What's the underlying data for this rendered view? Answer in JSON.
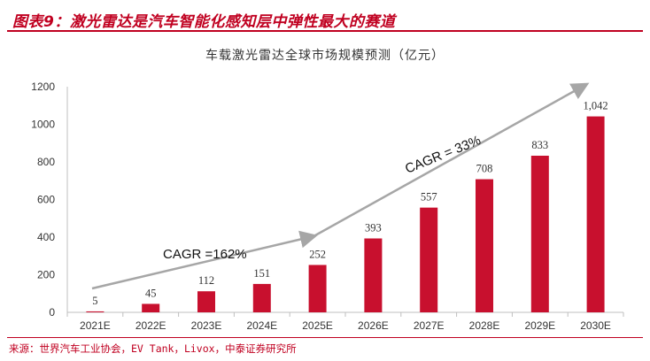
{
  "figure_title": "图表9：激光雷达是汽车智能化感知层中弹性最大的赛道",
  "source": "来源：世界汽车工业协会，EV Tank，Livox，中泰证券研究所",
  "colors": {
    "accent": "#c00020",
    "bar": "#c8102e",
    "arrow": "#a6a6a6"
  },
  "chart_data": {
    "type": "bar",
    "title": "车载激光雷达全球市场规模预测（亿元）",
    "xlabel": "",
    "ylabel": "",
    "categories": [
      "2021E",
      "2022E",
      "2023E",
      "2024E",
      "2025E",
      "2026E",
      "2027E",
      "2028E",
      "2029E",
      "2030E"
    ],
    "values": [
      5,
      45,
      112,
      151,
      252,
      393,
      557,
      708,
      833,
      1042
    ],
    "data_labels": [
      "5",
      "45",
      "112",
      "151",
      "252",
      "393",
      "557",
      "708",
      "833",
      "1,042"
    ],
    "ylim": [
      0,
      1200
    ],
    "yticks": [
      0,
      200,
      400,
      600,
      800,
      1000,
      1200
    ],
    "grid": false,
    "legend": "none",
    "annotations": [
      {
        "text": "CAGR =162%",
        "from": "2021E",
        "to": "2025E"
      },
      {
        "text": "CAGR = 33%",
        "from": "2025E",
        "to": "2030E"
      }
    ]
  }
}
